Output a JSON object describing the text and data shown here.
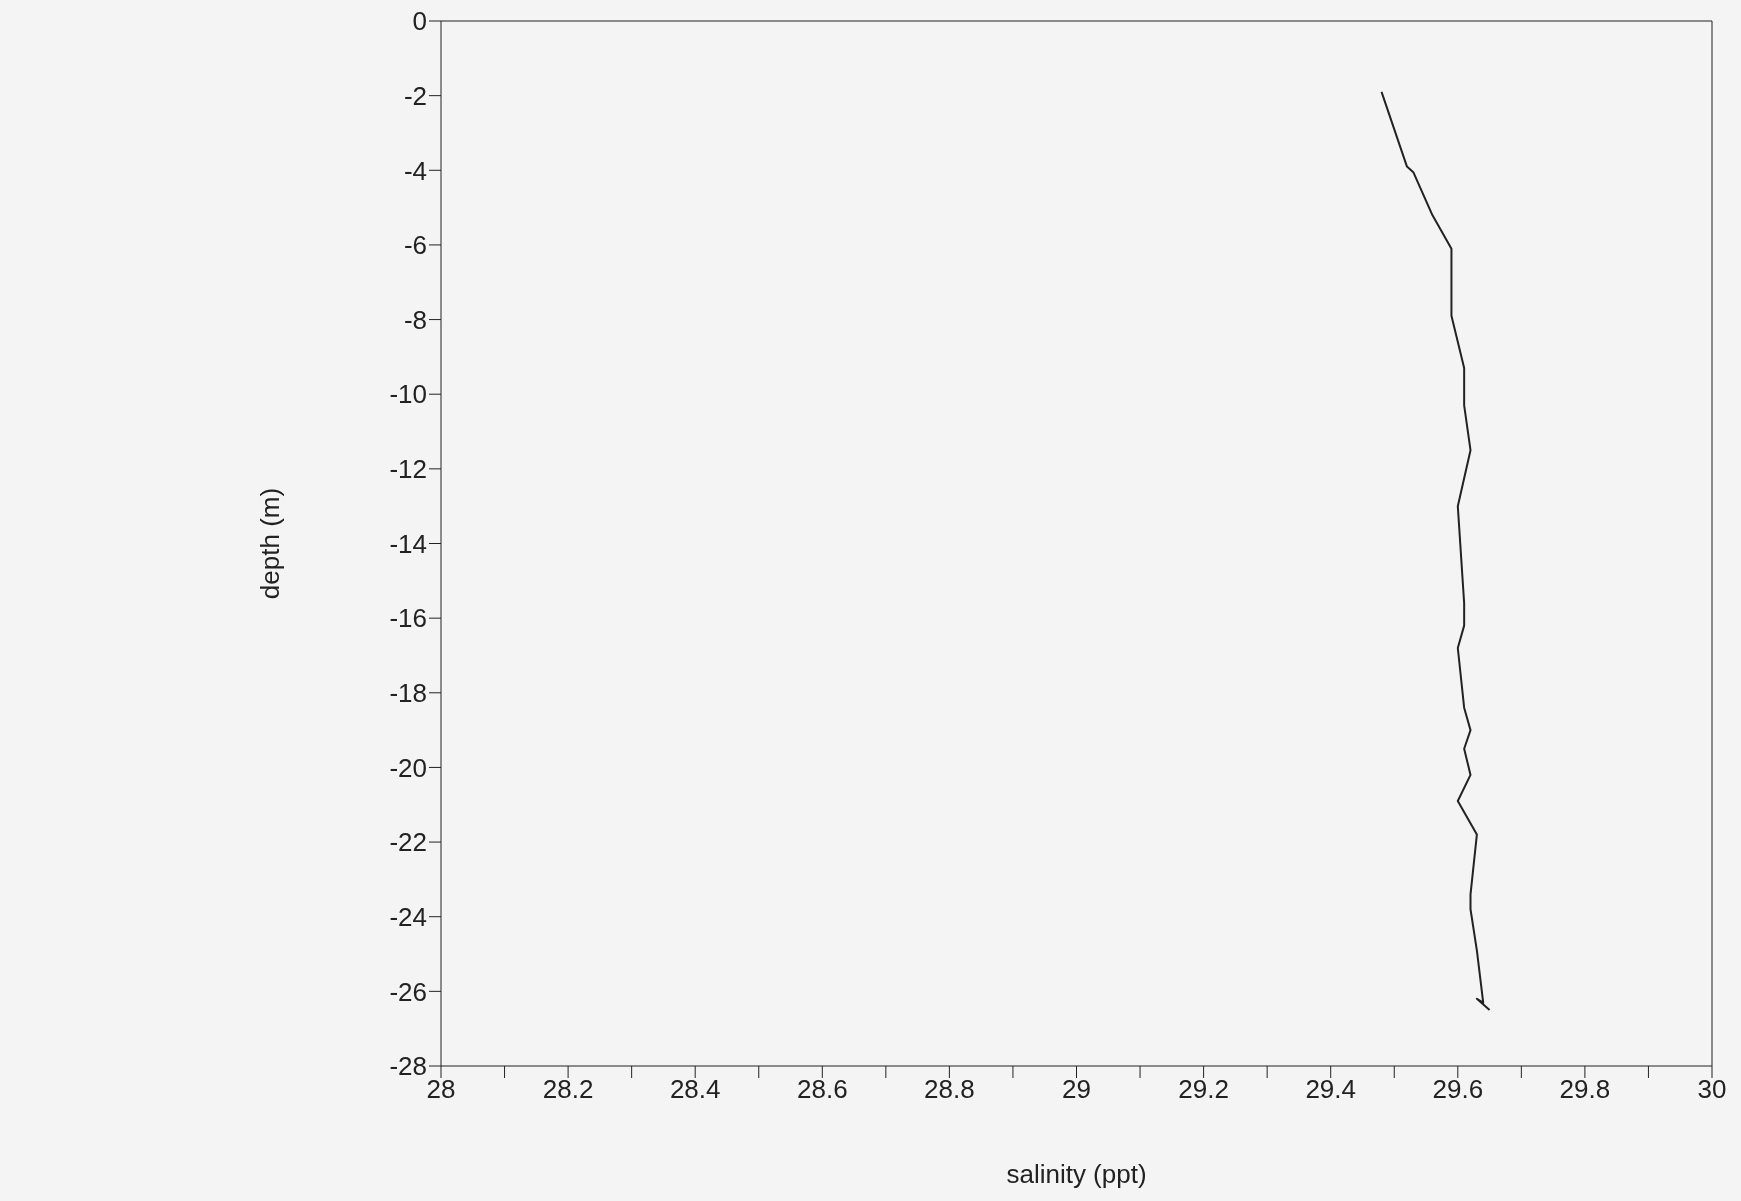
{
  "chart_data": {
    "type": "line",
    "xlabel": "salinity (ppt)",
    "ylabel": "depth (m)",
    "xlim": [
      28,
      30
    ],
    "ylim": [
      -28,
      0
    ],
    "xticks": [
      28,
      {
        "value": 28.1,
        "label": null
      },
      28.2,
      {
        "value": 28.3,
        "label": null
      },
      28.4,
      {
        "value": 28.5,
        "label": null
      },
      28.6,
      {
        "value": 28.7,
        "label": null
      },
      28.8,
      {
        "value": 28.9,
        "label": null
      },
      29,
      {
        "value": 29.1,
        "label": null
      },
      29.2,
      {
        "value": 29.3,
        "label": null
      },
      29.4,
      {
        "value": 29.5,
        "label": null
      },
      29.6,
      {
        "value": 29.7,
        "label": null
      },
      29.8,
      {
        "value": 29.9,
        "label": null
      },
      30
    ],
    "yticks": [
      0,
      -2,
      -4,
      -6,
      -8,
      -10,
      -12,
      -14,
      -16,
      -18,
      -20,
      -22,
      -24,
      -26,
      -28
    ],
    "grid": false,
    "marker": "none",
    "line_style": "solid",
    "series": [
      {
        "color": "#222222",
        "x": [
          29.48,
          29.52,
          29.53,
          29.56,
          29.59,
          29.59,
          29.59,
          29.59,
          29.61,
          29.61,
          29.62,
          29.6,
          29.61,
          29.61,
          29.6,
          29.61,
          29.62,
          29.61,
          29.62,
          29.6,
          29.63,
          29.62,
          29.62,
          29.63,
          29.64,
          29.63,
          29.65
        ],
        "values": [
          -1.9,
          -3.9,
          -4.05,
          -5.2,
          -6.1,
          -6.7,
          -7.7,
          -7.9,
          -9.3,
          -10.3,
          -11.5,
          -13,
          -15.6,
          -16.2,
          -16.8,
          -18.4,
          -19,
          -19.5,
          -20.2,
          -20.9,
          -21.8,
          -23.4,
          -23.8,
          -24.9,
          -26.3,
          -26.2,
          -26.5
        ]
      }
    ]
  }
}
